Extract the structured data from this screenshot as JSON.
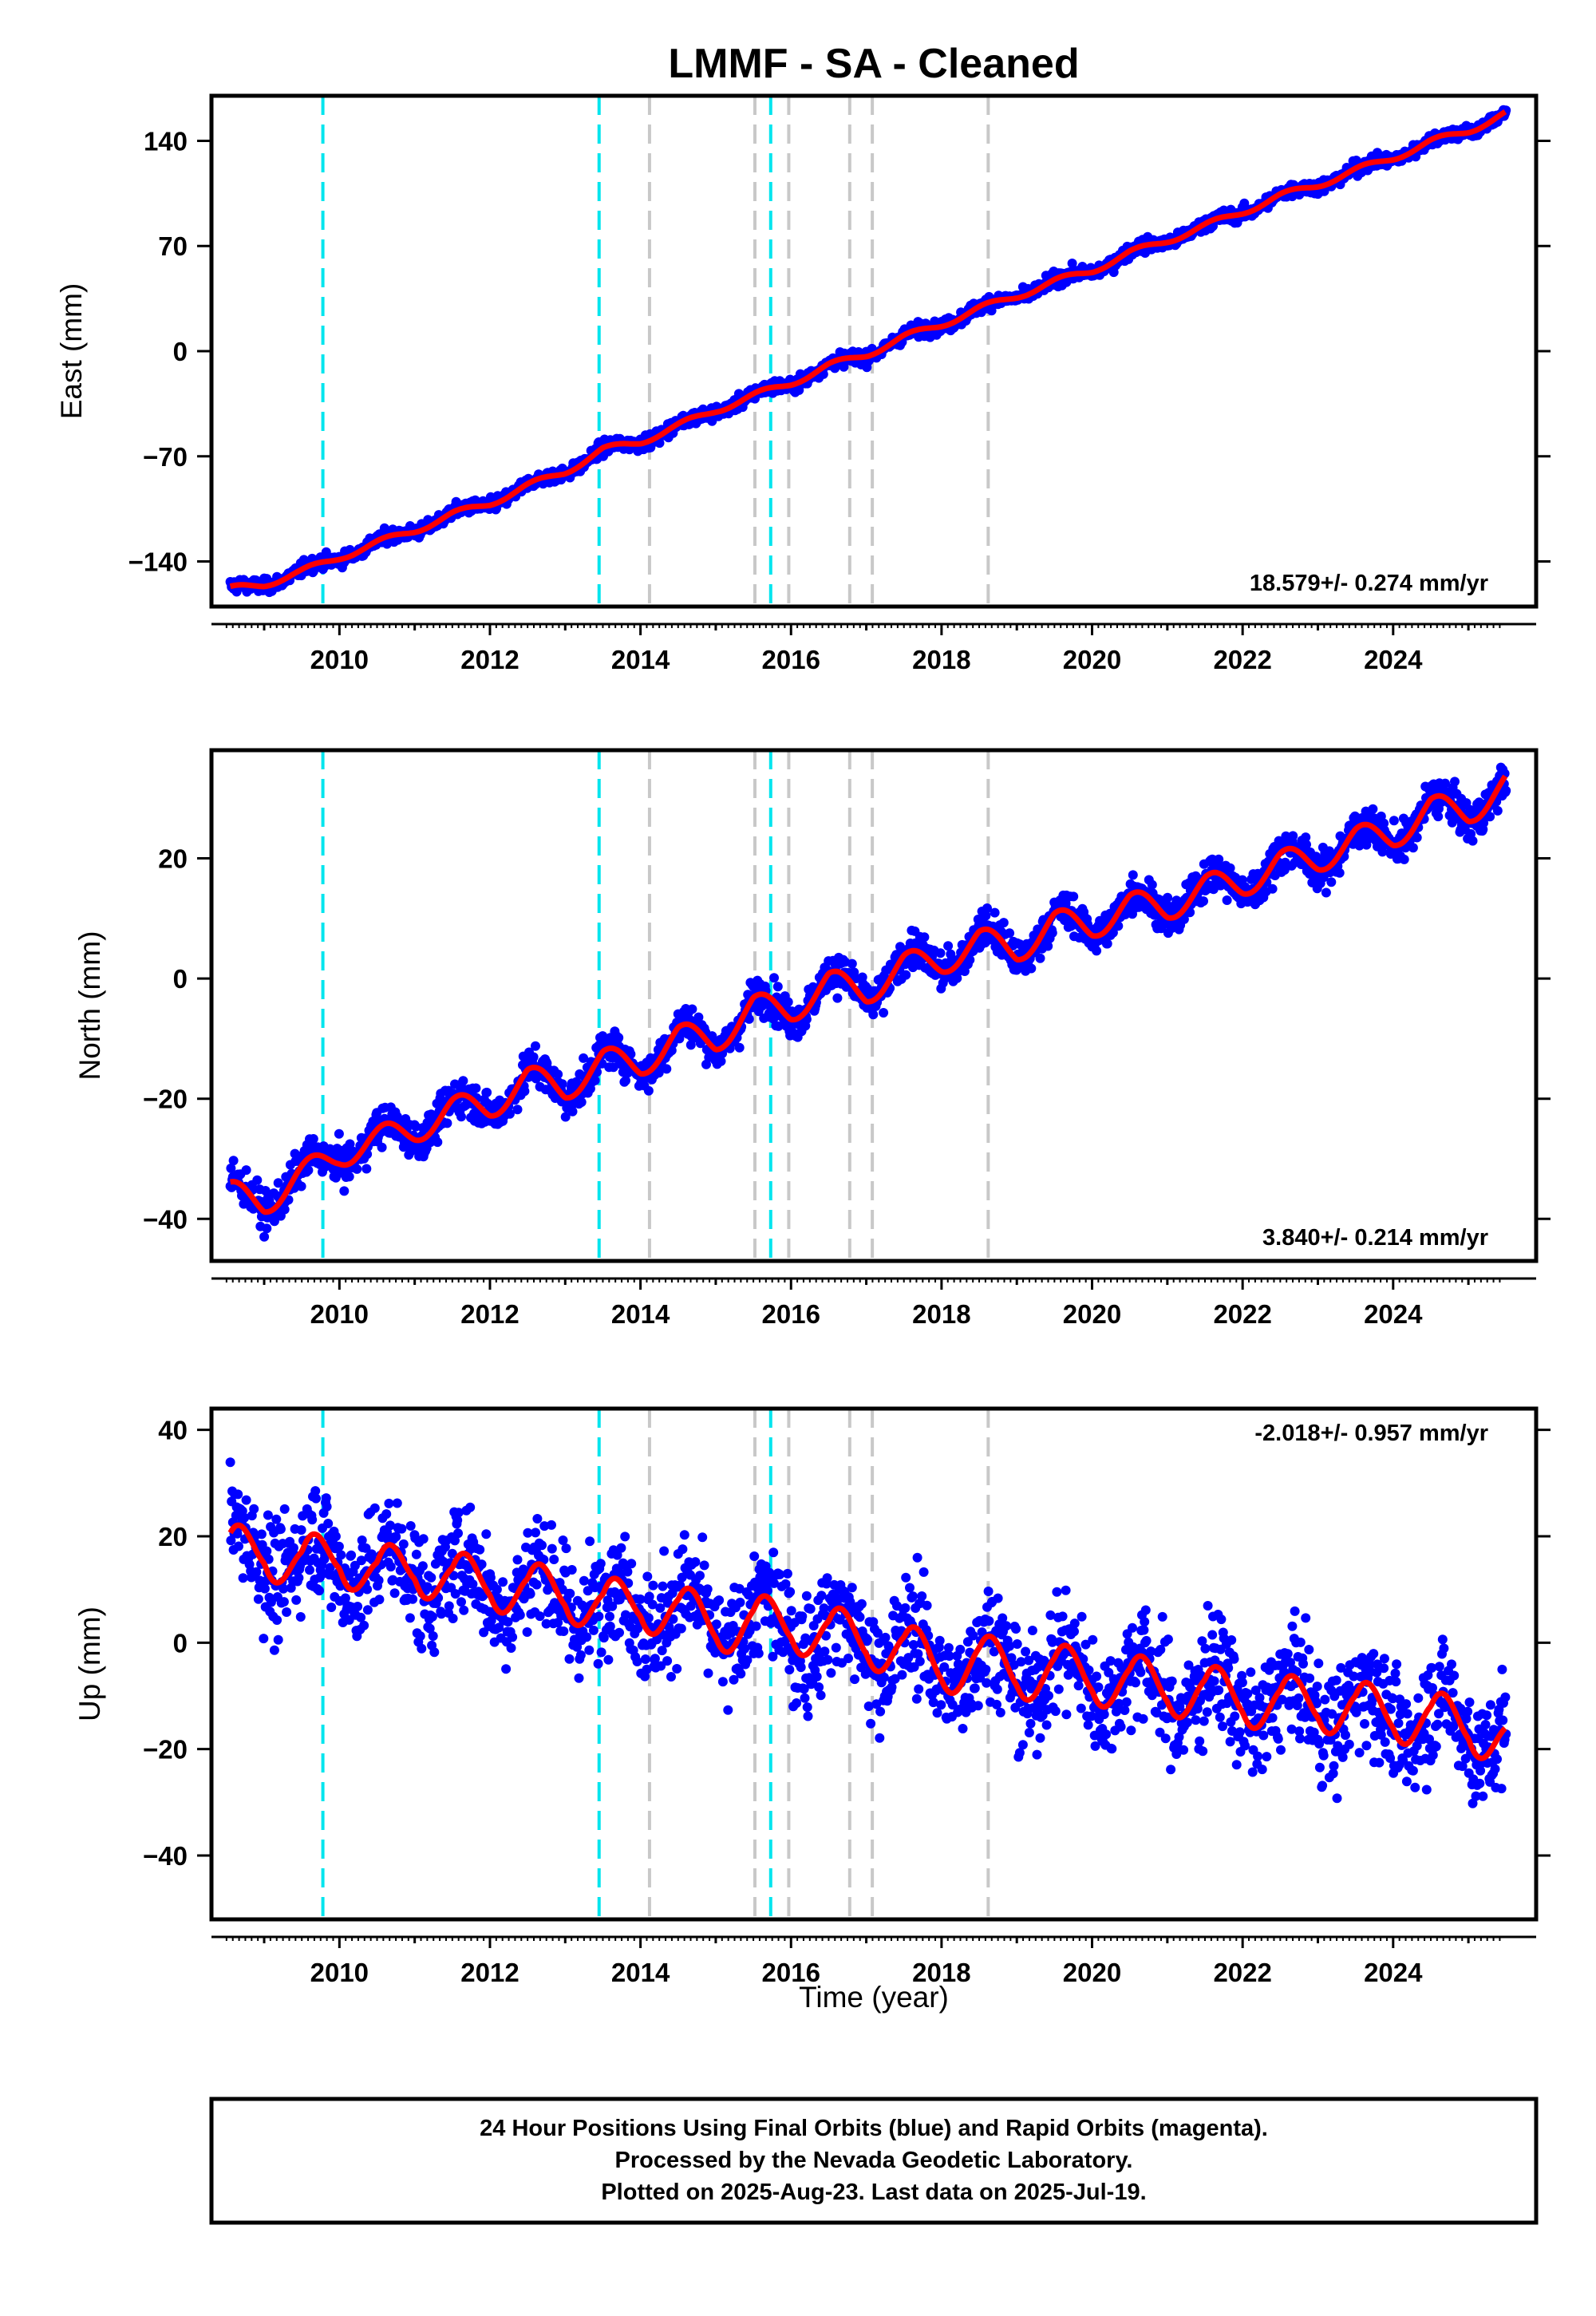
{
  "chart_data": {
    "type": "scatter",
    "title": "LMMF  - SA - Cleaned",
    "xlabel": "Time (year)",
    "xlim": [
      2008.3,
      2025.9
    ],
    "xticks": [
      2010,
      2012,
      2014,
      2016,
      2018,
      2020,
      2022,
      2024
    ],
    "colors": {
      "points": "#0000ff",
      "fit": "#ff0000",
      "major_event": "#00e5ee",
      "minor_event": "#c8c8c8"
    },
    "events_cyan": [
      2009.78,
      2013.45,
      2015.73
    ],
    "events_gray": [
      2014.12,
      2015.52,
      2015.97,
      2016.78,
      2017.08,
      2018.62
    ],
    "panels": [
      {
        "name": "east",
        "ylabel": "East (mm)",
        "ylim": [
          -170,
          170
        ],
        "yticks": [
          -140,
          -70,
          0,
          70,
          140
        ],
        "rate_label": "18.579+/- 0.274 mm/yr",
        "fit": {
          "slope": 18.579,
          "ref_year": 2017.0,
          "offset": 0,
          "annual_amp": 2.2
        },
        "points_x": [
          2008.5,
          2009.0,
          2009.5,
          2010.0,
          2010.5,
          2011.0,
          2011.5,
          2012.0,
          2012.5,
          2013.0,
          2013.5,
          2014.0,
          2014.5,
          2015.0,
          2015.5,
          2016.0,
          2016.5,
          2017.0,
          2017.5,
          2018.0,
          2018.5,
          2019.0,
          2019.5,
          2020.0,
          2020.5,
          2021.0,
          2021.5,
          2022.0,
          2022.5,
          2023.0,
          2023.5,
          2024.0,
          2024.5,
          2025.0,
          2025.5
        ],
        "points_y": [
          -159,
          -155,
          -147,
          -137,
          -128,
          -119,
          -109,
          -101,
          -90,
          -80,
          -66,
          -60,
          -50,
          -39,
          -30,
          -21,
          -10,
          -2,
          9,
          18,
          28,
          37,
          46,
          54,
          65,
          74,
          83,
          93,
          103,
          111,
          120,
          129,
          139,
          147,
          158
        ]
      },
      {
        "name": "north",
        "ylabel": "North (mm)",
        "ylim": [
          -47,
          38
        ],
        "yticks": [
          -40,
          -20,
          0,
          20
        ],
        "rate_label": "3.840+/- 0.214 mm/yr",
        "fit": {
          "slope": 3.84,
          "ref_year": 2017.0,
          "offset": -1.5,
          "annual_amp": 2.4
        },
        "points_x": [
          2008.5,
          2009.0,
          2009.5,
          2010.0,
          2010.5,
          2011.0,
          2011.5,
          2012.0,
          2012.5,
          2013.0,
          2013.5,
          2014.0,
          2014.5,
          2015.0,
          2015.5,
          2016.0,
          2016.5,
          2017.0,
          2017.5,
          2018.0,
          2018.5,
          2019.0,
          2019.5,
          2020.0,
          2020.5,
          2021.0,
          2021.5,
          2022.0,
          2022.5,
          2023.0,
          2023.5,
          2024.0,
          2024.5,
          2025.0,
          2025.5
        ],
        "points_y": [
          -36,
          -37,
          -33,
          -29,
          -27,
          -25,
          -22,
          -21,
          -17,
          -18,
          -14,
          -14,
          -10,
          -10,
          -5,
          -5,
          -1,
          -2,
          2,
          3,
          6,
          5,
          9,
          9,
          12,
          12,
          15,
          16,
          19,
          20,
          23,
          24,
          28,
          28,
          32
        ]
      },
      {
        "name": "up",
        "ylabel": "Up (mm)",
        "ylim": [
          -52,
          44
        ],
        "yticks": [
          -40,
          -20,
          0,
          20,
          40
        ],
        "rate_label": "-2.018+/- 0.957 mm/yr",
        "fit": {
          "slope": -2.018,
          "ref_year": 2017.0,
          "offset": 0,
          "annual_amp": 6.5
        },
        "points_x": [
          2008.5,
          2009.0,
          2009.5,
          2010.0,
          2010.5,
          2011.0,
          2011.5,
          2012.0,
          2012.5,
          2013.0,
          2013.5,
          2014.0,
          2014.5,
          2015.0,
          2015.5,
          2016.0,
          2016.5,
          2017.0,
          2017.5,
          2018.0,
          2018.5,
          2019.0,
          2019.5,
          2020.0,
          2020.5,
          2021.0,
          2021.5,
          2022.0,
          2022.5,
          2023.0,
          2023.5,
          2024.0,
          2024.5,
          2025.0,
          2025.5
        ],
        "points_y": [
          14,
          20,
          12,
          19,
          10,
          17,
          9,
          14,
          7,
          12,
          4,
          10,
          3,
          6,
          1,
          6,
          -1,
          3,
          -4,
          -2,
          -6,
          -3,
          -8,
          -4,
          -10,
          -6,
          -12,
          -8,
          -14,
          -9,
          -15,
          -11,
          -17,
          -13,
          -21
        ]
      }
    ]
  },
  "footer": {
    "line1": "24 Hour Positions Using Final Orbits (blue) and Rapid Orbits (magenta).",
    "line2": "Processed by the Nevada Geodetic Laboratory.",
    "line3": "Plotted on 2025-Aug-23. Last data on 2025-Jul-19."
  }
}
